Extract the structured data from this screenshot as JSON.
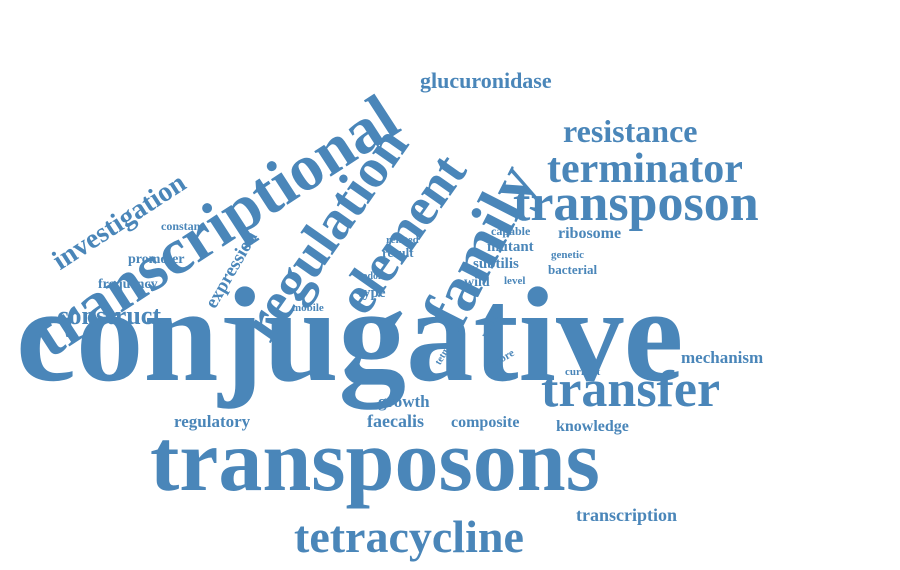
{
  "cloud": {
    "color": "#4a86b9",
    "background": "#ffffff",
    "words": {
      "conjugative": "conjugative",
      "transposons": "transposons",
      "transcriptional": "transcriptional",
      "regulation": "regulation",
      "element": "element",
      "family": "family",
      "terminator": "terminator",
      "transposon": "transposon",
      "transfer": "transfer",
      "tetracycline": "tetracycline",
      "resistance": "resistance",
      "glucuronidase": "glucuronidase",
      "investigation": "investigation",
      "expression": "expression",
      "construct": "construct",
      "mechanism": "mechanism",
      "transcription": "transcription",
      "faecalis": "faecalis",
      "composite": "composite",
      "knowledge": "knowledge",
      "regulatory": "regulatory",
      "growth": "growth",
      "ribosome": "ribosome",
      "mutant": "mutant",
      "subtilis": "subtilis",
      "capable": "capable",
      "bacterial": "bacterial",
      "genetic": "genetic",
      "wild": "wild",
      "level": "level",
      "type": "type",
      "result": "result",
      "related": "related",
      "codon": "codon",
      "mobile": "mobile",
      "constant": "constant",
      "promoter": "promoter",
      "frequency": "frequency",
      "current": "current",
      "range": "range",
      "more": "more",
      "tetm": "tetm"
    }
  }
}
